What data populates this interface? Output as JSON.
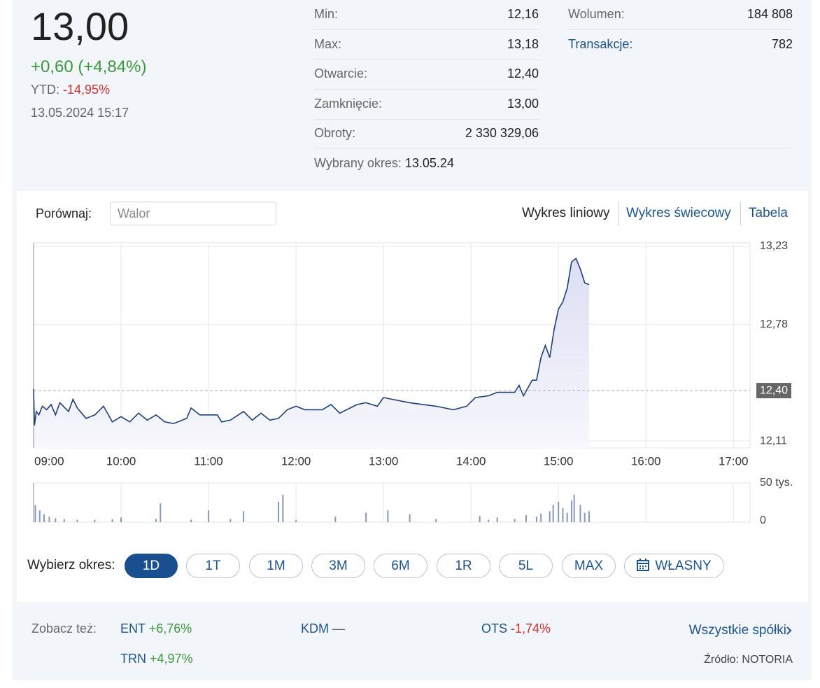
{
  "quote": {
    "price": "13,00",
    "change": "+0,60 (+4,84%)",
    "ytd_label": "YTD:",
    "ytd": "-14,95%",
    "datetime": "13.05.2024 15:17"
  },
  "stats": {
    "rows": [
      {
        "label": "Min:",
        "value": "12,16"
      },
      {
        "label": "Max:",
        "value": "13,18"
      },
      {
        "label": "Otwarcie:",
        "value": "12,40"
      },
      {
        "label": "Zamknięcie:",
        "value": "13,00"
      },
      {
        "label": "Obroty:",
        "value": "2 330 329,06"
      }
    ],
    "extra": [
      {
        "label": "Wolumen:",
        "value": "184 808"
      },
      {
        "label": "Transakcje:",
        "value": "782"
      }
    ],
    "period_label": "Wybrany okres:",
    "period": "13.05.24"
  },
  "compare": {
    "label": "Porównaj:",
    "placeholder": "Walor"
  },
  "tabs": [
    "Wykres liniowy",
    "Wykres świecowy",
    "Tabela"
  ],
  "chart_data": [
    {
      "type": "line",
      "color": "#1c3f7c",
      "grid": true,
      "x": [
        9.0,
        9.01,
        9.03,
        9.06,
        9.1,
        9.15,
        9.2,
        9.25,
        9.3,
        9.4,
        9.45,
        9.5,
        9.6,
        9.7,
        9.8,
        9.9,
        10.0,
        10.1,
        10.2,
        10.3,
        10.4,
        10.5,
        10.6,
        10.75,
        10.8,
        10.9,
        11.0,
        11.1,
        11.15,
        11.25,
        11.4,
        11.5,
        11.6,
        11.7,
        11.8,
        11.9,
        12.0,
        12.1,
        12.3,
        12.4,
        12.5,
        12.7,
        12.8,
        12.93,
        13.0,
        13.1,
        13.3,
        13.6,
        13.8,
        13.95,
        14.05,
        14.2,
        14.3,
        14.5,
        14.55,
        14.6,
        14.7,
        14.75,
        14.8,
        14.85,
        14.9,
        14.95,
        15.0,
        15.05,
        15.1,
        15.15,
        15.2,
        15.25,
        15.3,
        15.35
      ],
      "values": [
        12.41,
        12.2,
        12.28,
        12.26,
        12.31,
        12.29,
        12.32,
        12.26,
        12.33,
        12.28,
        12.35,
        12.3,
        12.24,
        12.26,
        12.31,
        12.22,
        12.25,
        12.22,
        12.27,
        12.23,
        12.26,
        12.22,
        12.21,
        12.24,
        12.3,
        12.26,
        12.26,
        12.26,
        12.22,
        12.23,
        12.28,
        12.23,
        12.27,
        12.23,
        12.24,
        12.29,
        12.31,
        12.29,
        12.29,
        12.32,
        12.27,
        12.32,
        12.33,
        12.31,
        12.36,
        12.35,
        12.33,
        12.31,
        12.29,
        12.31,
        12.36,
        12.37,
        12.39,
        12.39,
        12.43,
        12.37,
        12.46,
        12.46,
        12.59,
        12.66,
        12.59,
        12.75,
        12.87,
        12.91,
        12.99,
        13.14,
        13.16,
        13.1,
        13.02,
        13.01
      ],
      "xlim": [
        9,
        17.19
      ],
      "ylim": [
        12.07,
        13.25
      ],
      "xticks": [
        {
          "value": 9,
          "label": "09:00"
        },
        {
          "value": 10,
          "label": "10:00"
        },
        {
          "value": 11,
          "label": "11:00"
        },
        {
          "value": 12,
          "label": "12:00"
        },
        {
          "value": 13,
          "label": "13:00"
        },
        {
          "value": 14,
          "label": "14:00"
        },
        {
          "value": 15,
          "label": "15:00"
        },
        {
          "value": 16,
          "label": "16:00"
        },
        {
          "value": 17,
          "label": "17:00"
        }
      ],
      "yticks": [
        {
          "value": 13.23,
          "label": "13,23"
        },
        {
          "value": 12.78,
          "label": "12,78"
        },
        {
          "value": 12.11,
          "label": "12,11"
        }
      ],
      "reference_line": {
        "value": 12.4,
        "label": "12,40"
      }
    },
    {
      "type": "bar",
      "color": "#8798bf",
      "x": [
        9.02,
        9.07,
        9.12,
        9.18,
        9.25,
        9.35,
        9.5,
        9.7,
        9.9,
        10.0,
        10.4,
        10.45,
        10.8,
        11.0,
        11.25,
        11.4,
        11.8,
        11.85,
        12.0,
        12.45,
        12.8,
        13.05,
        13.3,
        13.6,
        14.1,
        14.2,
        14.3,
        14.5,
        14.63,
        14.75,
        14.8,
        14.9,
        14.94,
        15.0,
        15.05,
        15.1,
        15.15,
        15.18,
        15.25,
        15.3,
        15.35
      ],
      "values": [
        22000,
        15000,
        10000,
        7000,
        5000,
        4000,
        3000,
        3000,
        4000,
        6000,
        4000,
        24000,
        3000,
        15000,
        4000,
        14000,
        26000,
        35000,
        3000,
        7000,
        12000,
        15000,
        10000,
        4000,
        8000,
        3000,
        6000,
        4000,
        9000,
        7000,
        11000,
        14000,
        22000,
        26000,
        18000,
        12000,
        28000,
        35000,
        22000,
        12000,
        14000
      ],
      "xlim": [
        9,
        17.19
      ],
      "ylim": [
        0,
        50000
      ],
      "yticks": [
        0,
        {
          "value": 50000,
          "label": "50 tys."
        }
      ]
    }
  ],
  "range": {
    "label": "Wybierz okres:",
    "buttons": [
      "1D",
      "1T",
      "1M",
      "3M",
      "6M",
      "1R",
      "5L",
      "MAX",
      "WŁASNY"
    ]
  },
  "see_also": {
    "label": "Zobacz też:",
    "items": [
      {
        "name": "ENT",
        "change": "+6,76%"
      },
      {
        "name": "KDM",
        "change": "—"
      },
      {
        "name": "OTS",
        "change": "-1,74%"
      },
      {
        "name": "TRN",
        "change": "+4,97%"
      }
    ],
    "all": "Wszystkie spółki",
    "source": "Źródło: NOTORIA"
  }
}
